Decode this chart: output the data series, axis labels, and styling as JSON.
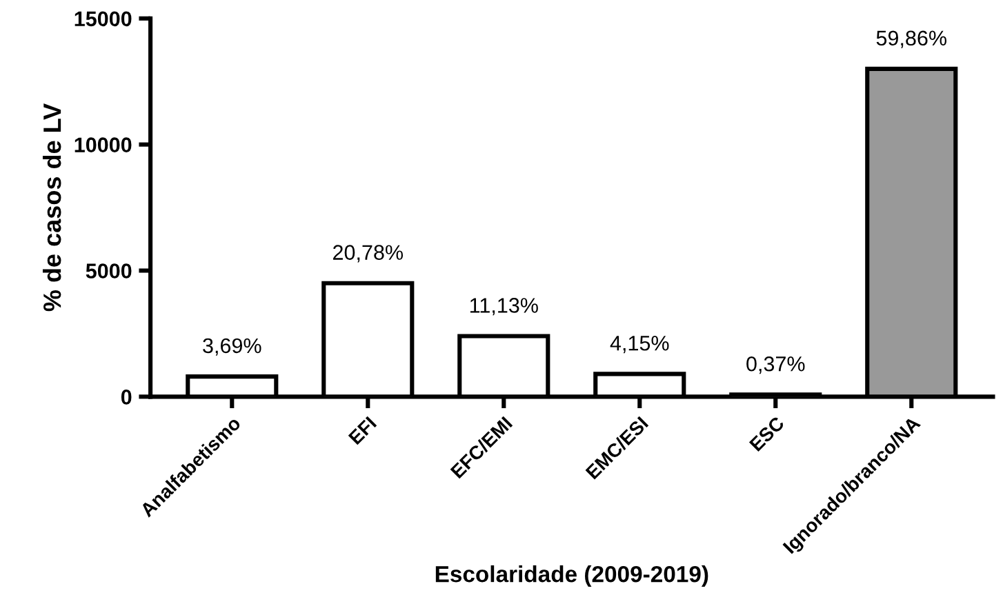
{
  "chart_data": {
    "type": "bar",
    "xlabel": "Escolaridade (2009-2019)",
    "ylabel": "% de casos de LV",
    "categories": [
      "Analfabetismo",
      "EFI",
      "EFC/EMI",
      "EMC/ESI",
      "ESC",
      "Ignorado/branco/NA"
    ],
    "values": [
      800,
      4500,
      2400,
      900,
      80,
      13000
    ],
    "colors": [
      "#ffffff",
      "#ffffff",
      "#ffffff",
      "#ffffff",
      "#ffffff",
      "#999999"
    ],
    "annotations": [
      {
        "text": "3,69%",
        "x": "Analfabetismo",
        "y": 800
      },
      {
        "text": "20,78%",
        "x": "EFI",
        "y": 4500
      },
      {
        "text": "11,13%",
        "x": "EFC/EMI",
        "y": 2400
      },
      {
        "text": "4,15%",
        "x": "EMC/ESI",
        "y": 900
      },
      {
        "text": "0,37%",
        "x": "ESC",
        "y": 80
      },
      {
        "text": "59,86%",
        "x": "Ignorado/branco/NA",
        "y": 13000
      }
    ],
    "ylim": [
      0,
      15000
    ],
    "yticks": [
      0,
      5000,
      10000,
      15000
    ],
    "grid": false,
    "legend": false
  }
}
